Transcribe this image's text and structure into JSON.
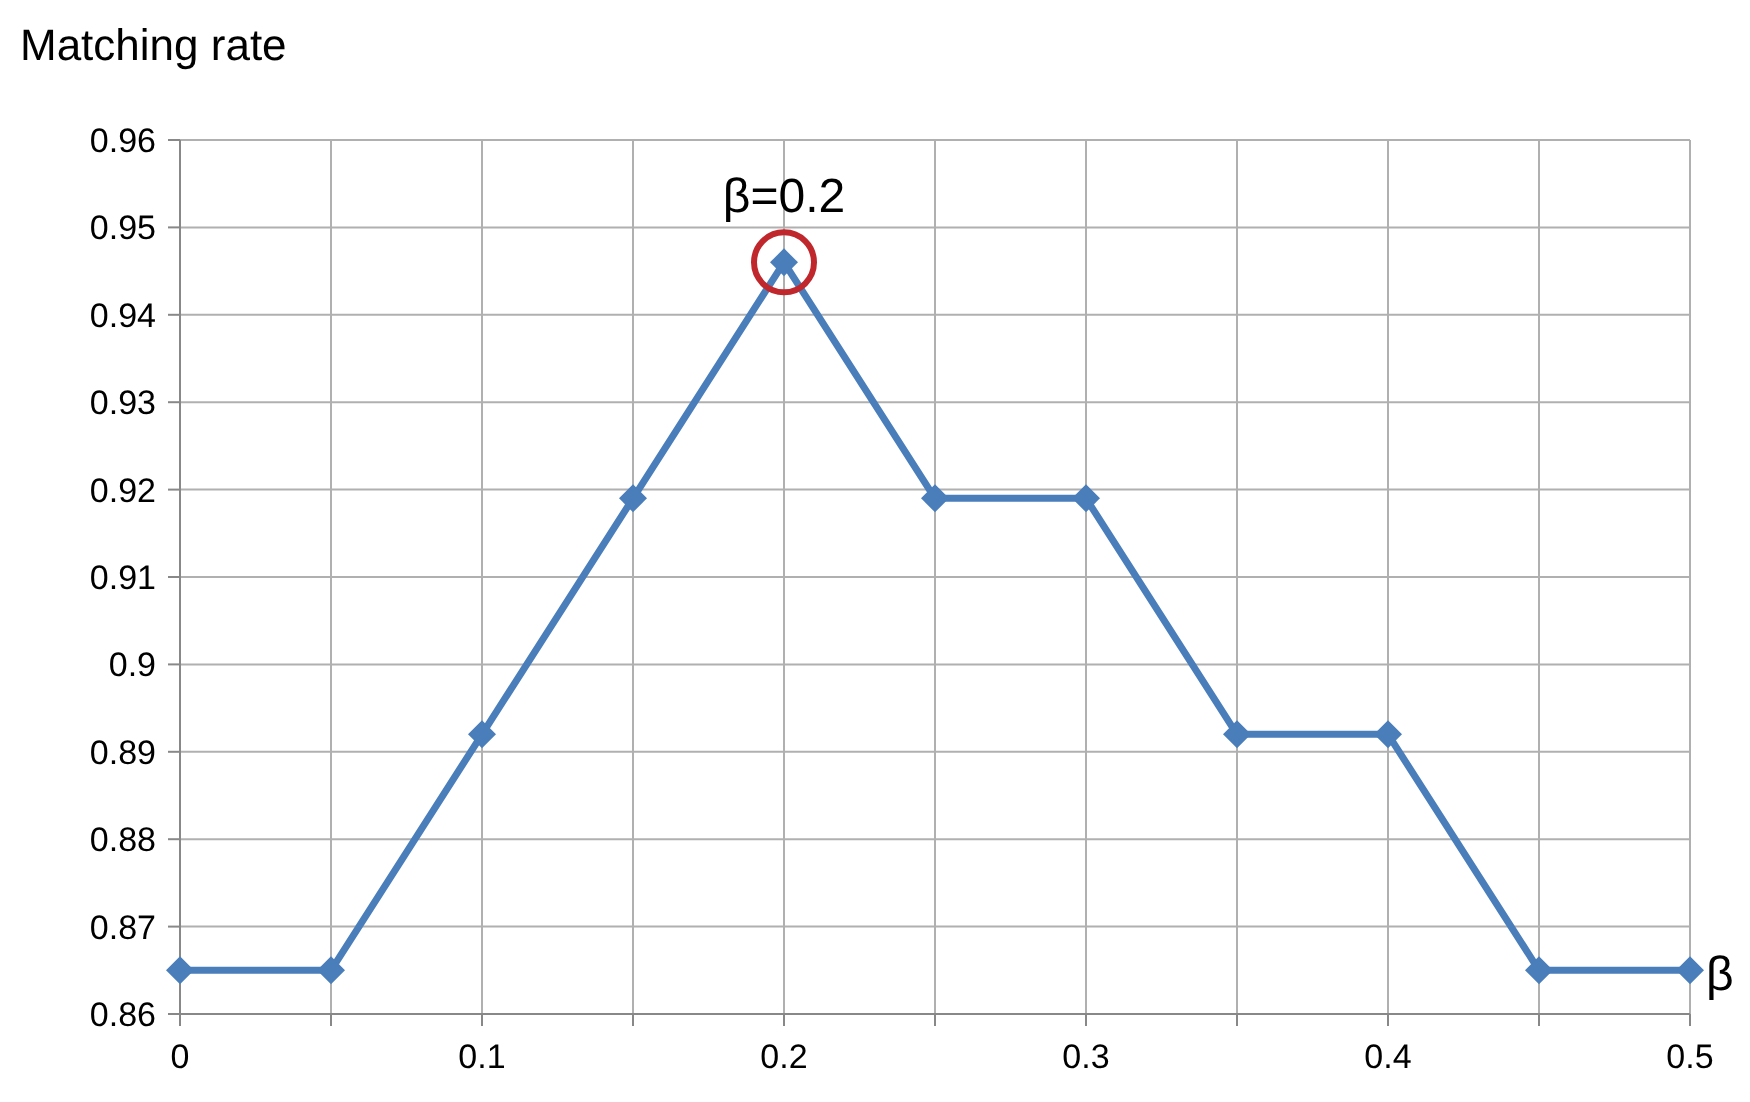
{
  "chart_data": {
    "type": "line",
    "xlabel": "β",
    "ylabel": "Matching rate",
    "x": [
      0,
      0.05,
      0.1,
      0.15,
      0.2,
      0.25,
      0.3,
      0.35,
      0.4,
      0.45,
      0.5
    ],
    "series": [
      {
        "color": "#4a7ebb",
        "values": [
          0.865,
          0.865,
          0.892,
          0.919,
          0.946,
          0.919,
          0.919,
          0.892,
          0.892,
          0.865,
          0.865
        ]
      }
    ],
    "xlim": [
      0,
      0.5
    ],
    "xticks": [
      0,
      {
        "value": 0.05,
        "label": null
      },
      0.1,
      {
        "value": 0.15,
        "label": null
      },
      0.2,
      {
        "value": 0.25,
        "label": null
      },
      0.3,
      {
        "value": 0.35,
        "label": null
      },
      0.4,
      {
        "value": 0.45,
        "label": null
      },
      0.5
    ],
    "ylim": [
      0.86,
      0.96
    ],
    "yticks": [
      0.86,
      0.87,
      0.88,
      0.89,
      0.9,
      0.91,
      0.92,
      0.93,
      0.94,
      0.95,
      0.96
    ],
    "grid": true,
    "marker": "diamond",
    "line_style": "solid",
    "annotations": [
      {
        "text": "β=0.2",
        "x": 0.2,
        "y": 0.946
      }
    ]
  }
}
